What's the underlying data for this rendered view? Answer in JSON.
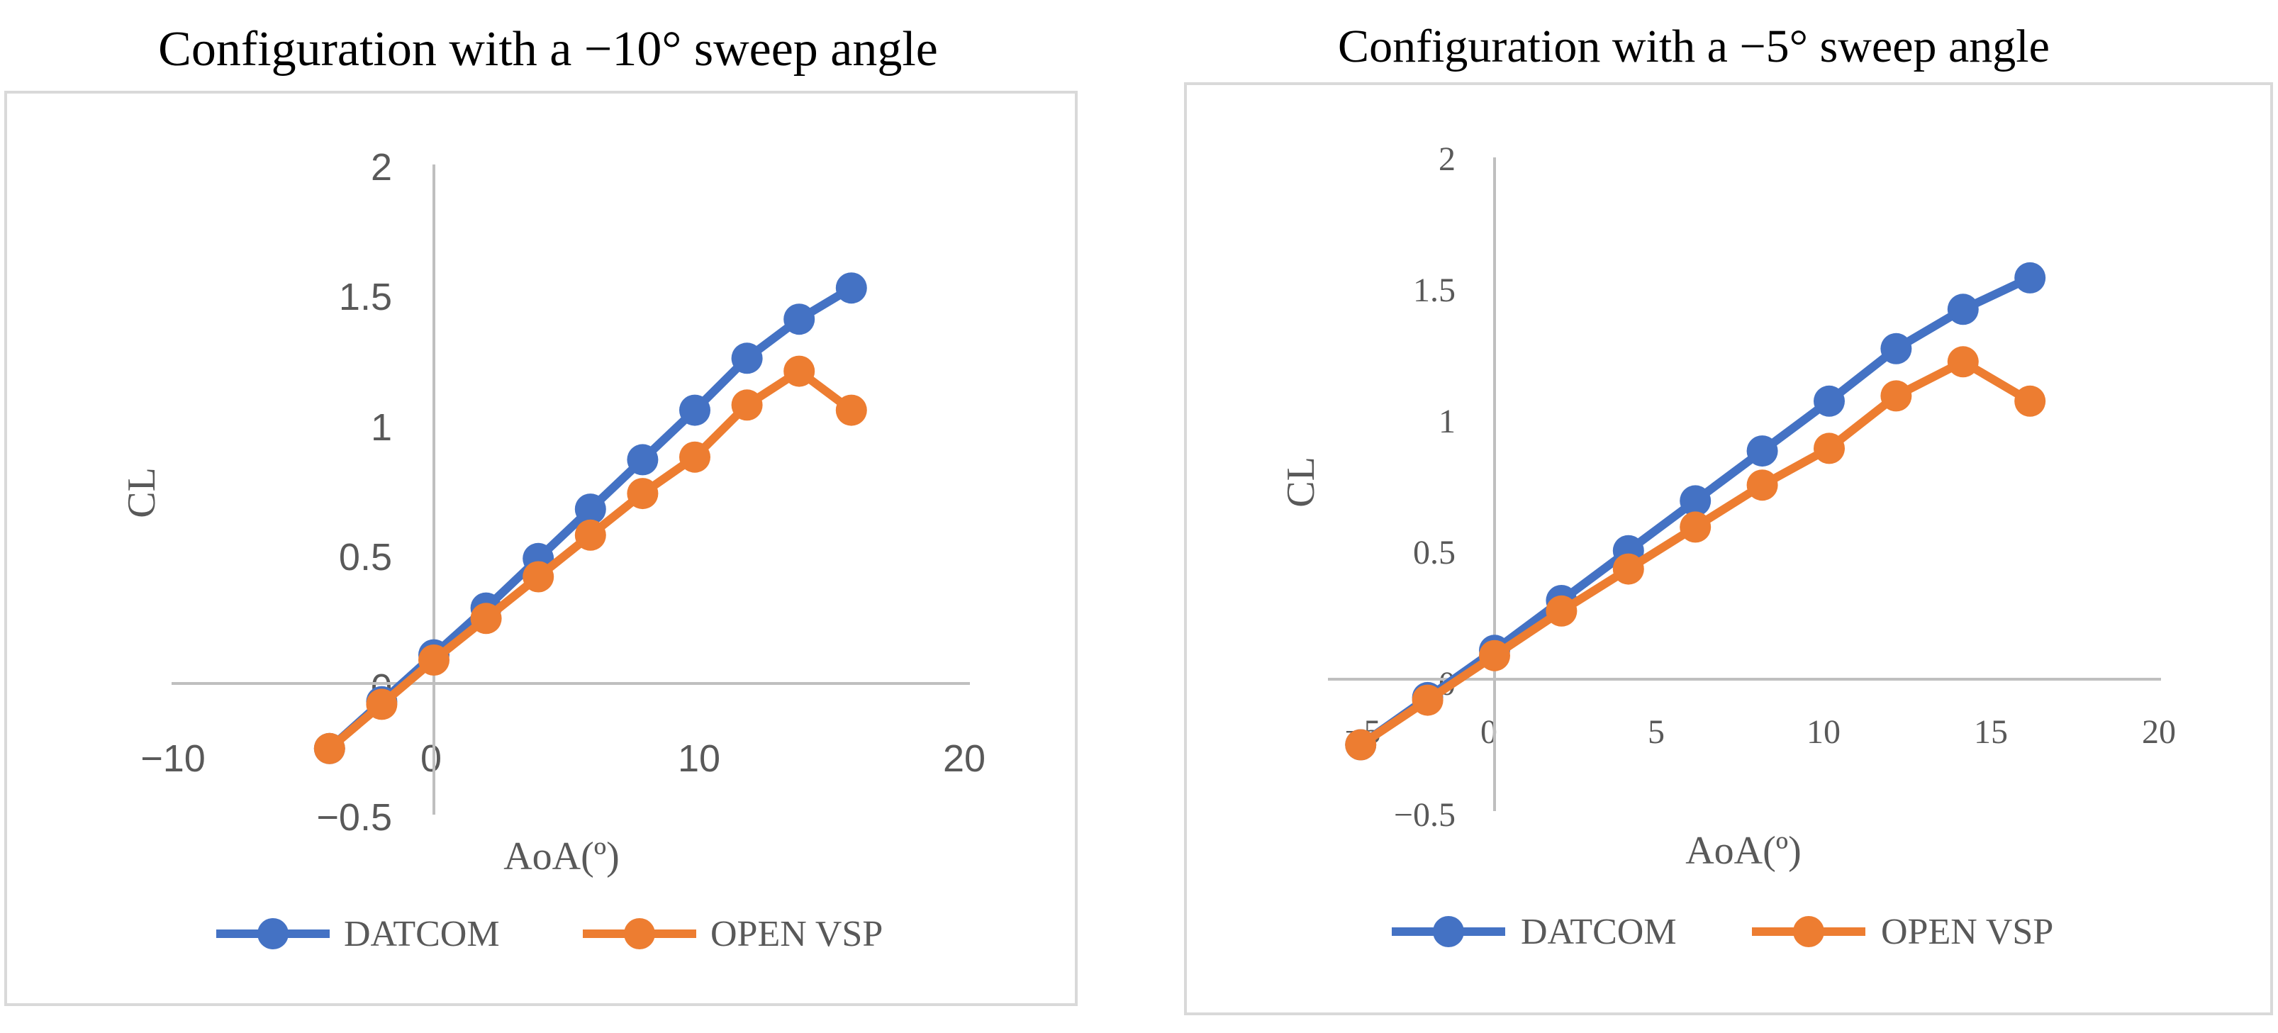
{
  "chart_data": [
    {
      "type": "line",
      "title": "Configuration with a −10° sweep angle",
      "xlabel": "AoA(º)",
      "ylabel": "CL",
      "xlim": [
        -10,
        20
      ],
      "ylim": [
        -0.5,
        2
      ],
      "xticks": [
        -10,
        0,
        10,
        20
      ],
      "xtick_labels": [
        "−10",
        "0",
        "10",
        "20"
      ],
      "yticks": [
        -0.5,
        0,
        0.5,
        1,
        1.5,
        2
      ],
      "ytick_labels": [
        "−0.5",
        "0",
        "0.5",
        "1",
        "1.5",
        "2"
      ],
      "legend": "bottom",
      "grid": false,
      "series": [
        {
          "name": "DATCOM",
          "color": "#4472C4",
          "x": [
            -4,
            -2,
            0,
            2,
            4,
            6,
            8,
            10,
            12,
            14,
            16
          ],
          "y": [
            -0.25,
            -0.07,
            0.11,
            0.29,
            0.48,
            0.67,
            0.86,
            1.05,
            1.25,
            1.4,
            1.52
          ]
        },
        {
          "name": "OPEN VSP",
          "color": "#ED7D31",
          "x": [
            -4,
            -2,
            0,
            2,
            4,
            6,
            8,
            10,
            12,
            14,
            16
          ],
          "y": [
            -0.25,
            -0.08,
            0.09,
            0.25,
            0.41,
            0.57,
            0.73,
            0.87,
            1.07,
            1.2,
            1.05
          ]
        }
      ]
    },
    {
      "type": "line",
      "title": "Configuration with a −5° sweep angle",
      "xlabel": "AoA(º)",
      "ylabel": "CL",
      "xlim": [
        -5,
        20
      ],
      "ylim": [
        -0.5,
        2
      ],
      "xticks": [
        -5,
        0,
        5,
        10,
        15,
        20
      ],
      "xtick_labels": [
        "−5",
        "0",
        "5",
        "10",
        "15",
        "20"
      ],
      "yticks": [
        -0.5,
        0,
        0.5,
        1,
        1.5,
        2
      ],
      "ytick_labels": [
        "−0.5",
        "0",
        "0.5",
        "1",
        "1.5",
        "2"
      ],
      "legend": "bottom",
      "grid": false,
      "series": [
        {
          "name": "DATCOM",
          "color": "#4472C4",
          "x": [
            -4,
            -2,
            0,
            2,
            4,
            6,
            8,
            10,
            12,
            14,
            16
          ],
          "y": [
            -0.25,
            -0.07,
            0.11,
            0.3,
            0.49,
            0.68,
            0.87,
            1.06,
            1.26,
            1.41,
            1.53
          ]
        },
        {
          "name": "OPEN VSP",
          "color": "#ED7D31",
          "x": [
            -4,
            -2,
            0,
            2,
            4,
            6,
            8,
            10,
            12,
            14,
            16
          ],
          "y": [
            -0.25,
            -0.08,
            0.09,
            0.26,
            0.42,
            0.58,
            0.74,
            0.88,
            1.08,
            1.21,
            1.06
          ]
        }
      ]
    }
  ]
}
